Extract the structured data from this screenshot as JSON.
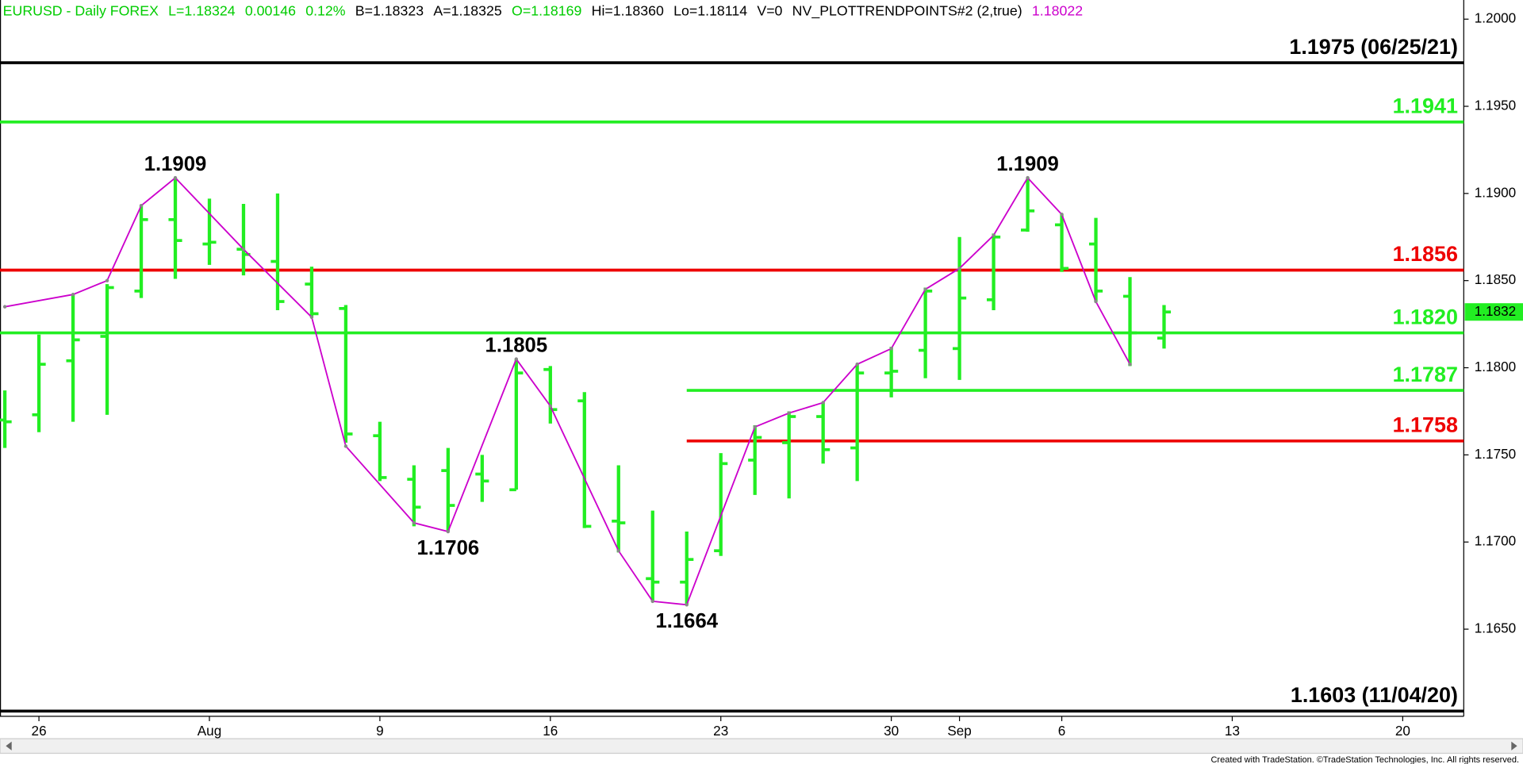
{
  "chart_data": {
    "type": "ohlc",
    "header": [
      {
        "text": "EURUSD - Daily  FOREX",
        "color": "#00cc00"
      },
      {
        "text": "L=1.18324",
        "color": "#00cc00"
      },
      {
        "text": "0.00146",
        "color": "#00cc00"
      },
      {
        "text": "0.12%",
        "color": "#00cc00"
      },
      {
        "text": "B=1.18323",
        "color": "#000000"
      },
      {
        "text": "A=1.18325",
        "color": "#000000"
      },
      {
        "text": "O=1.18169",
        "color": "#00cc00"
      },
      {
        "text": "Hi=1.18360",
        "color": "#000000"
      },
      {
        "text": "Lo=1.18114",
        "color": "#000000"
      },
      {
        "text": "V=0",
        "color": "#000000"
      },
      {
        "text": "NV_PLOTTRENDPOINTS#2 (2,true)",
        "color": "#000000"
      },
      {
        "text": "1.18022",
        "color": "#cc00cc"
      }
    ],
    "x": [
      0,
      1,
      2,
      3,
      4,
      5,
      6,
      7,
      8,
      9,
      10,
      11,
      12,
      13,
      14,
      15,
      16,
      17,
      18,
      19,
      20,
      21,
      22,
      23,
      24,
      25,
      26,
      27,
      28,
      29,
      30,
      31,
      32,
      33,
      34
    ],
    "open": [
      1.177,
      1.1773,
      1.1804,
      1.1818,
      1.1844,
      1.1885,
      1.1871,
      1.1868,
      1.1861,
      1.1848,
      1.1834,
      1.1761,
      1.1736,
      1.1741,
      1.1739,
      1.173,
      1.1799,
      1.1781,
      1.1712,
      1.1679,
      1.1677,
      1.1695,
      1.1747,
      1.1757,
      1.1772,
      1.1754,
      1.1797,
      1.181,
      1.1811,
      1.1839,
      1.1879,
      1.1882,
      1.1871,
      1.1841,
      1.1817
    ],
    "high": [
      1.1787,
      1.1819,
      1.1842,
      1.1848,
      1.1893,
      1.1909,
      1.1897,
      1.1894,
      1.19,
      1.1858,
      1.1836,
      1.1769,
      1.1744,
      1.1754,
      1.175,
      1.1805,
      1.1801,
      1.1786,
      1.1744,
      1.1718,
      1.1706,
      1.1751,
      1.1767,
      1.1775,
      1.178,
      1.1802,
      1.1812,
      1.1846,
      1.1875,
      1.1877,
      1.1909,
      1.1888,
      1.1886,
      1.1852,
      1.1836
    ],
    "low": [
      1.1754,
      1.1763,
      1.1769,
      1.1773,
      1.184,
      1.1851,
      1.1859,
      1.1853,
      1.1833,
      1.1829,
      1.1757,
      1.1735,
      1.1709,
      1.1706,
      1.1723,
      1.173,
      1.1768,
      1.1708,
      1.1694,
      1.1666,
      1.1664,
      1.1692,
      1.1727,
      1.1725,
      1.1745,
      1.1735,
      1.1783,
      1.1794,
      1.1793,
      1.1833,
      1.1878,
      1.1855,
      1.1838,
      1.1801,
      1.1811
    ],
    "close": [
      1.1769,
      1.1802,
      1.1816,
      1.1846,
      1.1885,
      1.1873,
      1.1872,
      1.1865,
      1.1838,
      1.1831,
      1.1762,
      1.1737,
      1.172,
      1.1721,
      1.1735,
      1.1797,
      1.1776,
      1.1709,
      1.1711,
      1.1677,
      1.169,
      1.1745,
      1.176,
      1.1772,
      1.1753,
      1.1797,
      1.1798,
      1.1844,
      1.184,
      1.1875,
      1.189,
      1.1857,
      1.1844,
      1.182,
      1.1832
    ],
    "color": "#22ee22",
    "trend": {
      "x": [
        0,
        2,
        3,
        4,
        5,
        7,
        9,
        10,
        12,
        13,
        15,
        16,
        18,
        19,
        20,
        22,
        23,
        24,
        25,
        26,
        27,
        28,
        29,
        30,
        31,
        32,
        33
      ],
      "values": [
        1.1835,
        1.1842,
        1.185,
        1.1893,
        1.1909,
        1.1868,
        1.1829,
        1.1755,
        1.1711,
        1.1706,
        1.1805,
        1.1778,
        1.1695,
        1.1666,
        1.1664,
        1.1766,
        1.1774,
        1.178,
        1.1802,
        1.1811,
        1.1845,
        1.1857,
        1.1876,
        1.1909,
        1.1888,
        1.1838,
        1.1802
      ],
      "color": "#cc00cc"
    },
    "annotations": [
      {
        "label": "1.1909",
        "x": 5,
        "value": 1.1909
      },
      {
        "label": "1.1706",
        "x": 13,
        "value": 1.1706
      },
      {
        "label": "1.1805",
        "x": 15,
        "value": 1.1805
      },
      {
        "label": "1.1664",
        "x": 20,
        "value": 1.1664
      },
      {
        "label": "1.1909",
        "x": 30,
        "value": 1.1909
      }
    ],
    "levels": [
      {
        "value": 1.1975,
        "label": "1.1975 (06/25/21)",
        "color": "#000000"
      },
      {
        "value": 1.1941,
        "label": "1.1941",
        "color": "#22ee22"
      },
      {
        "value": 1.1856,
        "label": "1.1856",
        "color": "#ee0000"
      },
      {
        "value": 1.182,
        "label": "1.1820",
        "color": "#22ee22"
      },
      {
        "value": 1.1787,
        "label": "1.1787",
        "color": "#22ee22",
        "from": 20
      },
      {
        "value": 1.1758,
        "label": "1.1758",
        "color": "#ee0000",
        "from": 20
      },
      {
        "value": 1.1603,
        "label": "1.1603 (11/04/20)",
        "color": "#000000"
      }
    ],
    "last_price": {
      "value": 1.1832,
      "label": "1.1832"
    },
    "xlim": [
      -0.142,
      42.79
    ],
    "xticks": [
      {
        "value": 1,
        "label": "26"
      },
      {
        "value": 6,
        "label": "Aug"
      },
      {
        "value": 11,
        "label": "9"
      },
      {
        "value": 16,
        "label": "16"
      },
      {
        "value": 21,
        "label": "23"
      },
      {
        "value": 26,
        "label": "30"
      },
      {
        "value": 28,
        "label": "Sep"
      },
      {
        "value": 31,
        "label": "6"
      },
      {
        "value": 36,
        "label": "13"
      },
      {
        "value": 41,
        "label": "20"
      }
    ],
    "ylim": [
      1.16,
      1.2011
    ],
    "yticks": [
      {
        "value": 1.2,
        "label": "1.2000"
      },
      {
        "value": 1.195,
        "label": "1.1950"
      },
      {
        "value": 1.19,
        "label": "1.1900"
      },
      {
        "value": 1.185,
        "label": "1.1850"
      },
      {
        "value": 1.18,
        "label": "1.1800"
      },
      {
        "value": 1.175,
        "label": "1.1750"
      },
      {
        "value": 1.17,
        "label": "1.1700"
      },
      {
        "value": 1.165,
        "label": "1.1650"
      }
    ],
    "footer": "Created with TradeStation. ©TradeStation Technologies, Inc. All rights reserved."
  }
}
